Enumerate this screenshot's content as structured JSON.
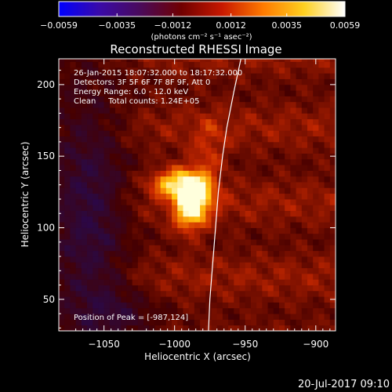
{
  "chart_data": {
    "type": "heatmap",
    "title": "Reconstructed RHESSI Image",
    "xlabel": "Heliocentric X (arcsec)",
    "ylabel": "Heliocentric Y (arcsec)",
    "xlim": [
      -1082,
      -886
    ],
    "ylim": [
      28,
      218
    ],
    "x_ticks": [
      -1050,
      -1000,
      -950,
      -900
    ],
    "x_tick_labels": [
      "−1050",
      "−1000",
      "−950",
      "−900"
    ],
    "y_ticks": [
      50,
      100,
      150,
      200
    ],
    "y_tick_labels": [
      "50",
      "100",
      "150",
      "200"
    ],
    "colorbar": {
      "range": [
        -0.0059,
        0.0059
      ],
      "ticks": [
        -0.0059,
        -0.0035,
        -0.0012,
        0.0012,
        0.0035,
        0.0059
      ],
      "tick_labels": [
        "−0.0059",
        "−0.0035",
        "−0.0012",
        "0.0012",
        "0.0035",
        "0.0059"
      ],
      "unit_label": "(photons cm⁻² s⁻¹ asec⁻²)",
      "colors": [
        "#0000ff",
        "#3a0aa8",
        "#4a0a5a",
        "#700000",
        "#c81800",
        "#ff7a00",
        "#ffd020",
        "#ffffff"
      ]
    },
    "annotations": [
      "26-Jan-2015 18:07:32.000 to 18:17:32.000",
      "Detectors: 3F 5F 6F 7F 8F 9F, Att 0",
      "Energy Range: 6.0 - 12.0 keV",
      "Clean     Total counts: 1.24E+05"
    ],
    "peak_label": "Position of Peak = [-987,124]",
    "peak": {
      "x": -987,
      "y": 124
    },
    "limb_curve": [
      {
        "x": -953,
        "y": 218
      },
      {
        "x": -958,
        "y": 195
      },
      {
        "x": -963,
        "y": 170
      },
      {
        "x": -966,
        "y": 150
      },
      {
        "x": -969,
        "y": 125
      },
      {
        "x": -971,
        "y": 100
      },
      {
        "x": -973,
        "y": 75
      },
      {
        "x": -975,
        "y": 50
      },
      {
        "x": -976,
        "y": 28
      }
    ],
    "sources": [
      {
        "x": -987,
        "y": 124,
        "amp": 1.0,
        "sx": 9,
        "sy": 12
      },
      {
        "x": -1005,
        "y": 132,
        "amp": 0.55,
        "sx": 10,
        "sy": 7
      },
      {
        "x": -975,
        "y": 150,
        "amp": 0.25,
        "sx": 8,
        "sy": 18
      },
      {
        "x": -990,
        "y": 105,
        "amp": 0.35,
        "sx": 8,
        "sy": 9
      }
    ]
  },
  "footer_timestamp": "20-Jul-2017 09:10"
}
